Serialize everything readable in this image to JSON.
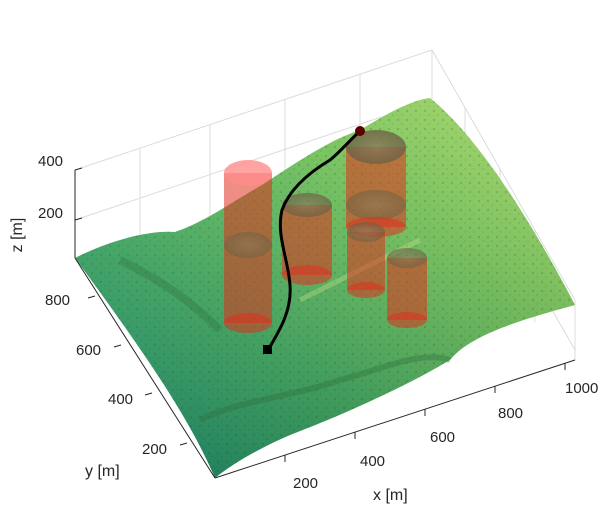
{
  "chart_data": {
    "type": "surface3d",
    "title": "",
    "xlabel": "x [m]",
    "ylabel": "y [m]",
    "zlabel": "z [m]",
    "x_ticks": [
      "200",
      "400",
      "600",
      "800",
      "1000"
    ],
    "y_ticks": [
      "200",
      "400",
      "600",
      "800"
    ],
    "z_ticks": [
      "200",
      "400"
    ],
    "xlim": [
      0,
      1100
    ],
    "ylim": [
      0,
      950
    ],
    "zlim": [
      0,
      450
    ],
    "grid": true,
    "surface_colormap": [
      "#1f8a70",
      "#4caf5a",
      "#9bd25a",
      "#c8e070"
    ],
    "obstacle_color": "#e0301e",
    "path_color": "#000000",
    "obstacles": [
      {
        "x": 300,
        "y": 720,
        "r": 55,
        "z_bottom": 120,
        "z_top": 330
      },
      {
        "x": 330,
        "y": 520,
        "r": 55,
        "z_bottom": 120,
        "z_top": 300
      },
      {
        "x": 470,
        "y": 620,
        "r": 55,
        "z_bottom": 130,
        "z_top": 290
      },
      {
        "x": 660,
        "y": 760,
        "r": 65,
        "z_bottom": 140,
        "z_top": 330
      },
      {
        "x": 700,
        "y": 560,
        "r": 50,
        "z_bottom": 130,
        "z_top": 280
      },
      {
        "x": 830,
        "y": 520,
        "r": 50,
        "z_bottom": 120,
        "z_top": 250
      }
    ],
    "path": {
      "start": {
        "x": 200,
        "y": 420,
        "z": 140
      },
      "goal": {
        "x": 620,
        "y": 900,
        "z": 320
      },
      "points": [
        [
          200,
          420
        ],
        [
          260,
          470
        ],
        [
          300,
          560
        ],
        [
          310,
          650
        ],
        [
          360,
          740
        ],
        [
          450,
          810
        ],
        [
          540,
          860
        ],
        [
          620,
          900
        ]
      ]
    }
  }
}
